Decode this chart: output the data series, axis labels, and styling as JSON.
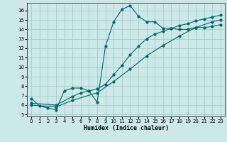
{
  "xlabel": "Humidex (Indice chaleur)",
  "background_color": "#cce8e8",
  "grid_color": "#aacccc",
  "line_color": "#006666",
  "xlim": [
    -0.5,
    23.5
  ],
  "ylim": [
    4.8,
    16.8
  ],
  "yticks": [
    5,
    6,
    7,
    8,
    9,
    10,
    11,
    12,
    13,
    14,
    15,
    16
  ],
  "xticks": [
    0,
    1,
    2,
    3,
    4,
    5,
    6,
    7,
    8,
    9,
    10,
    11,
    12,
    13,
    14,
    15,
    16,
    17,
    18,
    19,
    20,
    21,
    22,
    23
  ],
  "line1_x": [
    0,
    1,
    2,
    3,
    4,
    5,
    6,
    7,
    8,
    9,
    10,
    11,
    12,
    13,
    14,
    15,
    16,
    17,
    18,
    19,
    20,
    21,
    22,
    23
  ],
  "line1_y": [
    6.7,
    5.9,
    5.7,
    5.5,
    7.5,
    7.8,
    7.8,
    7.5,
    6.3,
    12.2,
    14.8,
    16.1,
    16.5,
    15.4,
    14.8,
    14.8,
    14.1,
    14.1,
    14.0,
    14.0,
    14.2,
    14.2,
    14.3,
    14.5
  ],
  "line2_x": [
    0,
    3,
    5,
    6,
    7,
    8,
    9,
    10,
    11,
    12,
    13,
    14,
    15,
    16,
    17,
    18,
    19,
    20,
    21,
    22,
    23
  ],
  "line2_y": [
    6.2,
    6.0,
    6.9,
    7.3,
    7.5,
    7.7,
    8.2,
    9.2,
    10.2,
    11.3,
    12.2,
    13.0,
    13.5,
    13.8,
    14.1,
    14.4,
    14.6,
    14.9,
    15.1,
    15.3,
    15.5
  ],
  "line3_x": [
    0,
    3,
    5,
    8,
    10,
    12,
    14,
    16,
    18,
    20,
    22,
    23
  ],
  "line3_y": [
    6.0,
    5.8,
    6.5,
    7.3,
    8.5,
    9.8,
    11.2,
    12.3,
    13.3,
    14.2,
    14.8,
    15.0
  ]
}
